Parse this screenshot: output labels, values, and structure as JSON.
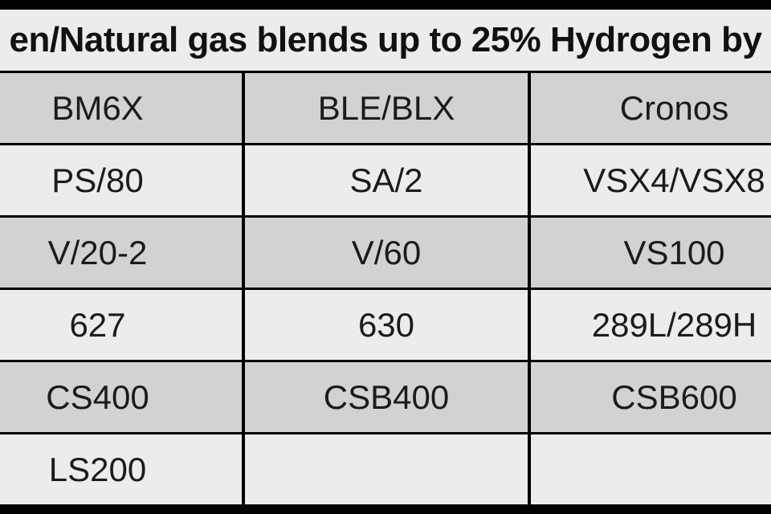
{
  "title": "en/Natural gas blends up to 25% Hydrogen by",
  "colors": {
    "row_gray": "#d2d2d2",
    "row_light": "#ececec",
    "border": "#000000",
    "text": "#1b1b1b"
  },
  "table": {
    "rows": [
      [
        "BM6X",
        "BLE/BLX",
        "Cronos"
      ],
      [
        "PS/80",
        "SA/2",
        "VSX4/VSX8"
      ],
      [
        "V/20-2",
        "V/60",
        "VS100"
      ],
      [
        "627",
        "630",
        "289L/289H"
      ],
      [
        "CS400",
        "CSB400",
        "CSB600"
      ],
      [
        "LS200",
        "",
        ""
      ]
    ]
  }
}
